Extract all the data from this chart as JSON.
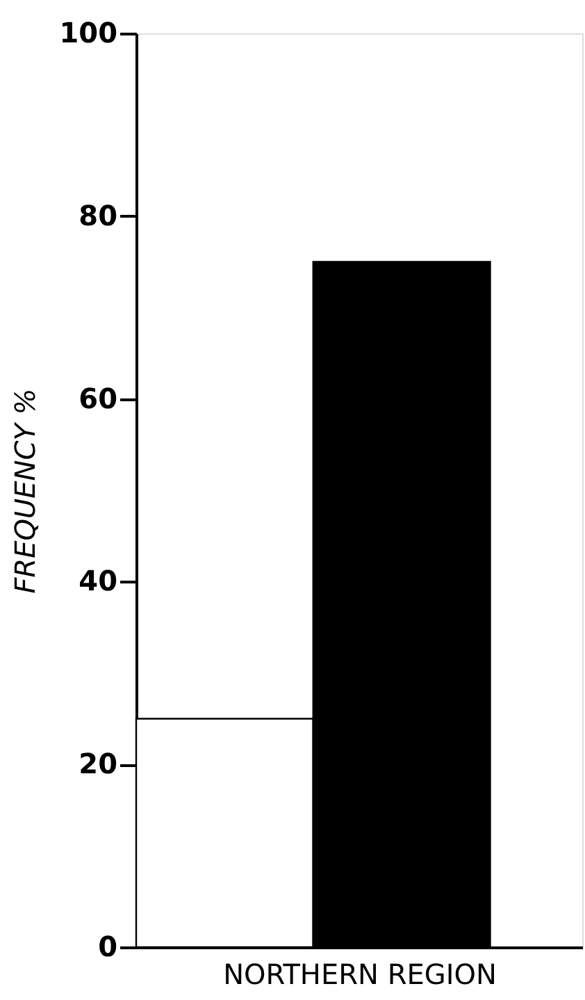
{
  "chart_data": {
    "type": "bar",
    "xlabel": "NORTHERN REGION",
    "ylabel": "FREQUENCY   %",
    "categories": [
      null,
      null
    ],
    "values": [
      25,
      75
    ],
    "colors": [
      "#ffffff",
      "#000000"
    ],
    "ylim": [
      0,
      100
    ],
    "yticks": [
      0,
      20,
      40,
      60,
      80,
      100
    ],
    "grid": false,
    "legend": false
  }
}
